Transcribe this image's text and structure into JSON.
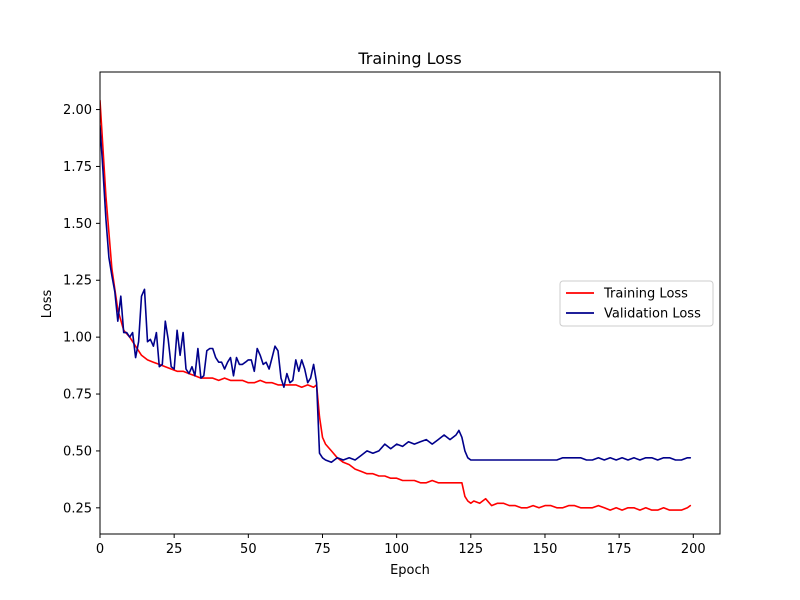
{
  "chart_data": {
    "type": "line",
    "title": "Training Loss",
    "xlabel": "Epoch",
    "ylabel": "Loss",
    "xlim": [
      0,
      209
    ],
    "ylim": [
      0.135,
      2.165
    ],
    "xticks": [
      0,
      25,
      50,
      75,
      100,
      125,
      150,
      175,
      200
    ],
    "yticks": [
      0.25,
      0.5,
      0.75,
      1.0,
      1.25,
      1.5,
      1.75,
      2.0
    ],
    "ytick_labels": [
      "0.25",
      "0.50",
      "0.75",
      "1.00",
      "1.25",
      "1.50",
      "1.75",
      "2.00"
    ],
    "grid": false,
    "legend_position": "center-right",
    "series": [
      {
        "name": "Training Loss",
        "color": "#ff0000",
        "x": [
          0,
          2,
          4,
          6,
          8,
          10,
          12,
          14,
          16,
          18,
          20,
          22,
          24,
          26,
          28,
          30,
          32,
          34,
          36,
          38,
          40,
          42,
          44,
          46,
          48,
          50,
          52,
          54,
          56,
          58,
          60,
          62,
          64,
          66,
          68,
          70,
          72,
          73,
          74,
          75,
          76,
          78,
          80,
          82,
          84,
          86,
          88,
          90,
          92,
          94,
          96,
          98,
          100,
          102,
          104,
          106,
          108,
          110,
          112,
          114,
          116,
          118,
          120,
          122,
          123,
          124,
          125,
          126,
          128,
          130,
          132,
          134,
          136,
          138,
          140,
          142,
          144,
          146,
          148,
          150,
          152,
          154,
          156,
          158,
          160,
          162,
          164,
          166,
          168,
          170,
          172,
          174,
          176,
          178,
          180,
          182,
          184,
          186,
          188,
          190,
          192,
          194,
          196,
          198,
          199
        ],
        "values": [
          2.04,
          1.62,
          1.3,
          1.12,
          1.03,
          1.0,
          0.96,
          0.92,
          0.9,
          0.89,
          0.88,
          0.87,
          0.86,
          0.85,
          0.85,
          0.84,
          0.83,
          0.82,
          0.82,
          0.82,
          0.81,
          0.82,
          0.81,
          0.81,
          0.81,
          0.8,
          0.8,
          0.81,
          0.8,
          0.8,
          0.79,
          0.79,
          0.79,
          0.79,
          0.78,
          0.79,
          0.78,
          0.79,
          0.65,
          0.56,
          0.53,
          0.5,
          0.47,
          0.45,
          0.44,
          0.42,
          0.41,
          0.4,
          0.4,
          0.39,
          0.39,
          0.38,
          0.38,
          0.37,
          0.37,
          0.37,
          0.36,
          0.36,
          0.37,
          0.36,
          0.36,
          0.36,
          0.36,
          0.36,
          0.3,
          0.28,
          0.27,
          0.28,
          0.27,
          0.29,
          0.26,
          0.27,
          0.27,
          0.26,
          0.26,
          0.25,
          0.25,
          0.26,
          0.25,
          0.26,
          0.26,
          0.25,
          0.25,
          0.26,
          0.26,
          0.25,
          0.25,
          0.25,
          0.26,
          0.25,
          0.24,
          0.25,
          0.24,
          0.25,
          0.25,
          0.24,
          0.25,
          0.24,
          0.24,
          0.25,
          0.24,
          0.24,
          0.24,
          0.25,
          0.26
        ]
      },
      {
        "name": "Validation Loss",
        "color": "#00008b",
        "x": [
          0,
          1,
          2,
          3,
          4,
          5,
          6,
          7,
          8,
          9,
          10,
          11,
          12,
          13,
          14,
          15,
          16,
          17,
          18,
          19,
          20,
          21,
          22,
          23,
          24,
          25,
          26,
          27,
          28,
          29,
          30,
          31,
          32,
          33,
          34,
          35,
          36,
          37,
          38,
          39,
          40,
          41,
          42,
          43,
          44,
          45,
          46,
          47,
          48,
          49,
          50,
          51,
          52,
          53,
          54,
          55,
          56,
          57,
          58,
          59,
          60,
          61,
          62,
          63,
          64,
          65,
          66,
          67,
          68,
          69,
          70,
          71,
          72,
          73,
          74,
          75,
          76,
          78,
          80,
          82,
          84,
          86,
          88,
          90,
          92,
          94,
          96,
          98,
          100,
          102,
          104,
          106,
          108,
          110,
          112,
          114,
          116,
          118,
          120,
          121,
          122,
          123,
          124,
          125,
          126,
          128,
          130,
          132,
          134,
          136,
          138,
          140,
          142,
          144,
          146,
          148,
          150,
          152,
          154,
          156,
          158,
          160,
          162,
          164,
          166,
          168,
          170,
          172,
          174,
          176,
          178,
          180,
          182,
          184,
          186,
          188,
          190,
          192,
          194,
          196,
          198,
          199
        ],
        "values": [
          1.93,
          1.73,
          1.52,
          1.35,
          1.27,
          1.2,
          1.07,
          1.18,
          1.02,
          1.02,
          1.0,
          1.02,
          0.91,
          0.98,
          1.18,
          1.21,
          0.98,
          0.99,
          0.96,
          1.02,
          0.87,
          0.88,
          1.07,
          0.99,
          0.87,
          0.86,
          1.03,
          0.92,
          1.02,
          0.86,
          0.84,
          0.87,
          0.83,
          0.95,
          0.82,
          0.83,
          0.94,
          0.95,
          0.95,
          0.91,
          0.89,
          0.89,
          0.86,
          0.89,
          0.91,
          0.83,
          0.91,
          0.88,
          0.88,
          0.89,
          0.9,
          0.9,
          0.85,
          0.95,
          0.92,
          0.88,
          0.89,
          0.86,
          0.91,
          0.96,
          0.94,
          0.82,
          0.78,
          0.84,
          0.8,
          0.81,
          0.9,
          0.85,
          0.9,
          0.86,
          0.8,
          0.82,
          0.88,
          0.8,
          0.49,
          0.47,
          0.46,
          0.45,
          0.47,
          0.46,
          0.47,
          0.46,
          0.48,
          0.5,
          0.49,
          0.5,
          0.53,
          0.51,
          0.53,
          0.52,
          0.54,
          0.53,
          0.54,
          0.55,
          0.53,
          0.55,
          0.57,
          0.55,
          0.57,
          0.59,
          0.56,
          0.5,
          0.47,
          0.46,
          0.46,
          0.46,
          0.46,
          0.46,
          0.46,
          0.46,
          0.46,
          0.46,
          0.46,
          0.46,
          0.46,
          0.46,
          0.46,
          0.46,
          0.46,
          0.47,
          0.47,
          0.47,
          0.47,
          0.46,
          0.46,
          0.47,
          0.46,
          0.47,
          0.46,
          0.47,
          0.46,
          0.47,
          0.46,
          0.47,
          0.47,
          0.46,
          0.47,
          0.47,
          0.46,
          0.46,
          0.47,
          0.47
        ]
      }
    ]
  }
}
